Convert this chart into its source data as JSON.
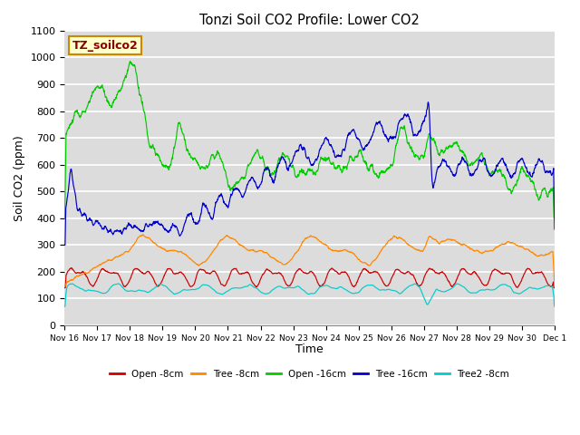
{
  "title": "Tonzi Soil CO2 Profile: Lower CO2",
  "xlabel": "Time",
  "ylabel": "Soil CO2 (ppm)",
  "ylim": [
    0,
    1100
  ],
  "yticks": [
    0,
    100,
    200,
    300,
    400,
    500,
    600,
    700,
    800,
    900,
    1000,
    1100
  ],
  "legend_label": "TZ_soilco2",
  "series": [
    "Open -8cm",
    "Tree -8cm",
    "Open -16cm",
    "Tree -16cm",
    "Tree2 -8cm"
  ],
  "colors": [
    "#cc0000",
    "#ff8800",
    "#00cc00",
    "#0000cc",
    "#00cccc"
  ],
  "background_color": "#dcdcdc",
  "grid_color": "#ffffff",
  "x_tick_labels": [
    "Nov 16",
    "Nov 17",
    "Nov 18",
    "Nov 19",
    "Nov 20",
    "Nov 21",
    "Nov 22",
    "Nov 23",
    "Nov 24",
    "Nov 25",
    "Nov 26",
    "Nov 27",
    "Nov 28",
    "Nov 29",
    "Nov 30",
    "Dec 1"
  ]
}
